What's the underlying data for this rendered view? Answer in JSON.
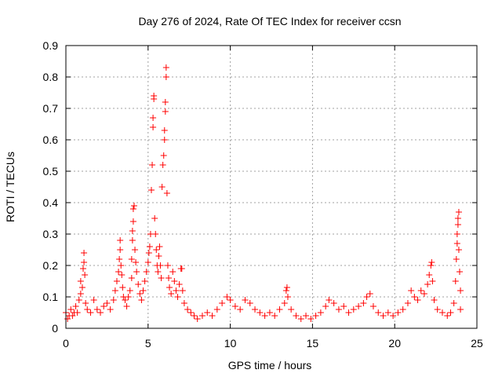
{
  "chart_data": {
    "type": "scatter",
    "title": "Day 276 of 2024, Rate Of TEC Index for receiver ccsn",
    "xlabel": "GPS time / hours",
    "ylabel": "ROTI / TECUs",
    "xlim": [
      0,
      25
    ],
    "ylim": [
      0,
      0.9
    ],
    "xticks": [
      "0",
      "5",
      "10",
      "15",
      "20",
      "25"
    ],
    "yticks": [
      "0",
      "0.1",
      "0.2",
      "0.3",
      "0.4",
      "0.5",
      "0.6",
      "0.7",
      "0.8",
      "0.9"
    ],
    "grid": true,
    "marker": "+",
    "color": "#ff0000",
    "series": [
      {
        "points": [
          [
            0.0,
            0.05
          ],
          [
            0.1,
            0.03
          ],
          [
            0.2,
            0.04
          ],
          [
            0.3,
            0.06
          ],
          [
            0.4,
            0.04
          ],
          [
            0.5,
            0.05
          ],
          [
            0.6,
            0.07
          ],
          [
            0.7,
            0.05
          ],
          [
            0.8,
            0.09
          ],
          [
            0.9,
            0.11
          ],
          [
            0.9,
            0.15
          ],
          [
            1.0,
            0.13
          ],
          [
            1.05,
            0.19
          ],
          [
            1.1,
            0.21
          ],
          [
            1.1,
            0.24
          ],
          [
            1.15,
            0.17
          ],
          [
            1.2,
            0.08
          ],
          [
            1.3,
            0.06
          ],
          [
            1.5,
            0.05
          ],
          [
            1.7,
            0.09
          ],
          [
            1.9,
            0.06
          ],
          [
            2.1,
            0.05
          ],
          [
            2.3,
            0.07
          ],
          [
            2.5,
            0.08
          ],
          [
            2.7,
            0.06
          ],
          [
            2.9,
            0.09
          ],
          [
            3.0,
            0.12
          ],
          [
            3.1,
            0.15
          ],
          [
            3.2,
            0.18
          ],
          [
            3.25,
            0.22
          ],
          [
            3.3,
            0.25
          ],
          [
            3.3,
            0.28
          ],
          [
            3.35,
            0.2
          ],
          [
            3.4,
            0.17
          ],
          [
            3.45,
            0.13
          ],
          [
            3.5,
            0.1
          ],
          [
            3.6,
            0.09
          ],
          [
            3.7,
            0.07
          ],
          [
            3.8,
            0.1
          ],
          [
            3.9,
            0.12
          ],
          [
            4.0,
            0.16
          ],
          [
            4.0,
            0.22
          ],
          [
            4.05,
            0.28
          ],
          [
            4.05,
            0.31
          ],
          [
            4.1,
            0.34
          ],
          [
            4.1,
            0.38
          ],
          [
            4.15,
            0.39
          ],
          [
            4.2,
            0.25
          ],
          [
            4.25,
            0.21
          ],
          [
            4.3,
            0.18
          ],
          [
            4.4,
            0.14
          ],
          [
            4.5,
            0.11
          ],
          [
            4.6,
            0.09
          ],
          [
            4.7,
            0.12
          ],
          [
            4.8,
            0.15
          ],
          [
            4.9,
            0.18
          ],
          [
            5.0,
            0.21
          ],
          [
            5.05,
            0.24
          ],
          [
            5.1,
            0.26
          ],
          [
            5.15,
            0.3
          ],
          [
            5.2,
            0.44
          ],
          [
            5.25,
            0.52
          ],
          [
            5.3,
            0.64
          ],
          [
            5.3,
            0.67
          ],
          [
            5.35,
            0.73
          ],
          [
            5.35,
            0.74
          ],
          [
            5.4,
            0.35
          ],
          [
            5.45,
            0.3
          ],
          [
            5.5,
            0.25
          ],
          [
            5.55,
            0.2
          ],
          [
            5.6,
            0.18
          ],
          [
            5.65,
            0.23
          ],
          [
            5.7,
            0.26
          ],
          [
            5.75,
            0.2
          ],
          [
            5.8,
            0.16
          ],
          [
            5.85,
            0.45
          ],
          [
            5.9,
            0.52
          ],
          [
            5.95,
            0.55
          ],
          [
            6.0,
            0.6
          ],
          [
            6.0,
            0.63
          ],
          [
            6.05,
            0.69
          ],
          [
            6.05,
            0.72
          ],
          [
            6.1,
            0.8
          ],
          [
            6.1,
            0.83
          ],
          [
            6.15,
            0.43
          ],
          [
            6.2,
            0.2
          ],
          [
            6.25,
            0.16
          ],
          [
            6.3,
            0.13
          ],
          [
            6.4,
            0.11
          ],
          [
            6.5,
            0.18
          ],
          [
            6.6,
            0.15
          ],
          [
            6.7,
            0.12
          ],
          [
            6.8,
            0.1
          ],
          [
            6.9,
            0.14
          ],
          [
            7.0,
            0.19
          ],
          [
            7.05,
            0.19
          ],
          [
            7.1,
            0.12
          ],
          [
            7.2,
            0.08
          ],
          [
            7.4,
            0.06
          ],
          [
            7.6,
            0.05
          ],
          [
            7.8,
            0.04
          ],
          [
            8.0,
            0.03
          ],
          [
            8.3,
            0.04
          ],
          [
            8.6,
            0.05
          ],
          [
            8.9,
            0.04
          ],
          [
            9.2,
            0.06
          ],
          [
            9.5,
            0.08
          ],
          [
            9.8,
            0.1
          ],
          [
            10.0,
            0.09
          ],
          [
            10.3,
            0.07
          ],
          [
            10.6,
            0.06
          ],
          [
            10.9,
            0.09
          ],
          [
            11.2,
            0.08
          ],
          [
            11.5,
            0.06
          ],
          [
            11.8,
            0.05
          ],
          [
            12.1,
            0.04
          ],
          [
            12.4,
            0.05
          ],
          [
            12.7,
            0.04
          ],
          [
            13.0,
            0.06
          ],
          [
            13.3,
            0.08
          ],
          [
            13.4,
            0.12
          ],
          [
            13.45,
            0.13
          ],
          [
            13.5,
            0.1
          ],
          [
            13.7,
            0.06
          ],
          [
            14.0,
            0.04
          ],
          [
            14.3,
            0.03
          ],
          [
            14.6,
            0.04
          ],
          [
            14.9,
            0.03
          ],
          [
            15.2,
            0.04
          ],
          [
            15.5,
            0.05
          ],
          [
            15.8,
            0.07
          ],
          [
            16.0,
            0.09
          ],
          [
            16.3,
            0.08
          ],
          [
            16.6,
            0.06
          ],
          [
            16.9,
            0.07
          ],
          [
            17.2,
            0.05
          ],
          [
            17.5,
            0.06
          ],
          [
            17.8,
            0.07
          ],
          [
            18.1,
            0.08
          ],
          [
            18.3,
            0.1
          ],
          [
            18.5,
            0.11
          ],
          [
            18.7,
            0.07
          ],
          [
            19.0,
            0.05
          ],
          [
            19.3,
            0.04
          ],
          [
            19.6,
            0.05
          ],
          [
            19.9,
            0.04
          ],
          [
            20.2,
            0.05
          ],
          [
            20.5,
            0.06
          ],
          [
            20.8,
            0.08
          ],
          [
            21.0,
            0.12
          ],
          [
            21.2,
            0.1
          ],
          [
            21.4,
            0.09
          ],
          [
            21.6,
            0.12
          ],
          [
            21.8,
            0.11
          ],
          [
            22.0,
            0.14
          ],
          [
            22.1,
            0.17
          ],
          [
            22.2,
            0.2
          ],
          [
            22.25,
            0.21
          ],
          [
            22.3,
            0.15
          ],
          [
            22.4,
            0.09
          ],
          [
            22.6,
            0.06
          ],
          [
            22.9,
            0.05
          ],
          [
            23.2,
            0.04
          ],
          [
            23.4,
            0.05
          ],
          [
            23.6,
            0.08
          ],
          [
            23.7,
            0.15
          ],
          [
            23.75,
            0.22
          ],
          [
            23.8,
            0.27
          ],
          [
            23.8,
            0.3
          ],
          [
            23.85,
            0.33
          ],
          [
            23.85,
            0.35
          ],
          [
            23.9,
            0.37
          ],
          [
            23.9,
            0.25
          ],
          [
            23.95,
            0.18
          ],
          [
            24.0,
            0.12
          ],
          [
            24.0,
            0.06
          ]
        ]
      }
    ]
  }
}
